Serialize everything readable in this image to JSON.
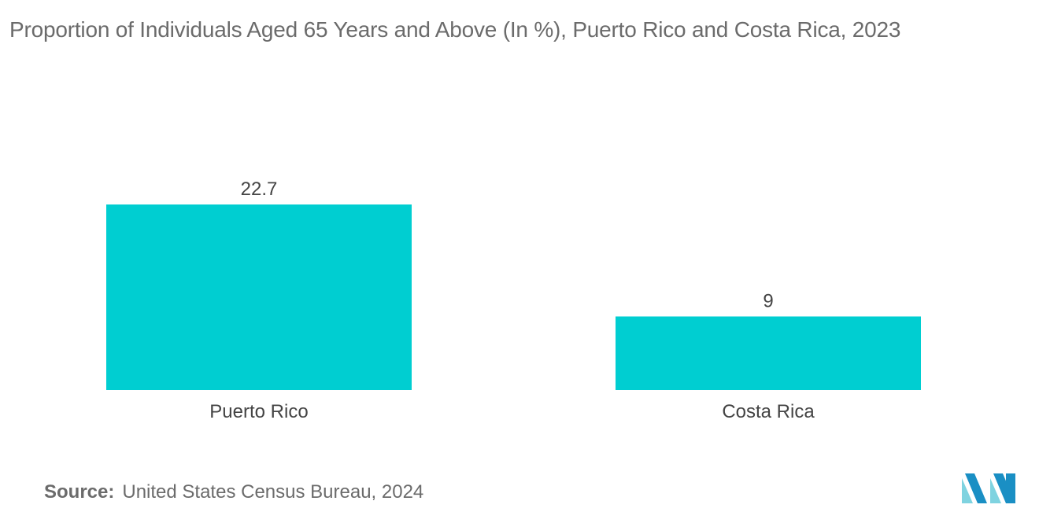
{
  "chart_data": {
    "type": "bar",
    "title": "Proportion of Individuals Aged 65 Years and Above (In %), Puerto Rico and Costa Rica, 2023",
    "categories": [
      "Puerto Rico",
      "Costa Rica"
    ],
    "values": [
      22.7,
      9
    ],
    "value_labels": [
      "22.7",
      "9"
    ],
    "xlabel": "",
    "ylabel": "",
    "ylim": [
      0,
      22.7
    ],
    "grid": false,
    "bar_color": "#00ced1"
  },
  "source": {
    "label": "Source:",
    "text": "United States Census Bureau, 2024"
  },
  "colors": {
    "bar": "#00ced1",
    "text": "#6b6b6b",
    "logo_light": "#7fd3e0",
    "logo_dark": "#1a8fc4"
  },
  "logo": {
    "icon": "mordor-intelligence-logo"
  }
}
